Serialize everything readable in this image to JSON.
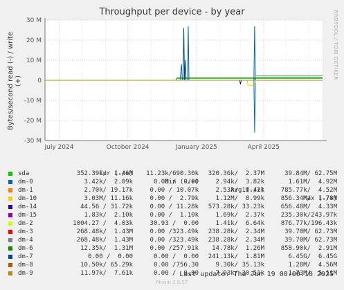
{
  "chart_data": {
    "type": "line",
    "title": "Throughput per device - by year",
    "ylabel": "Bytes/second read (-) / write (+)",
    "ylim": [
      -30000000,
      30000000
    ],
    "yticks": [
      {
        "v": 30000000,
        "label": "30 M"
      },
      {
        "v": 20000000,
        "label": "20 M"
      },
      {
        "v": 10000000,
        "label": "10 M"
      },
      {
        "v": 0,
        "label": "0"
      },
      {
        "v": -10000000,
        "label": "-10 M"
      },
      {
        "v": -20000000,
        "label": "-20 M"
      },
      {
        "v": -30000000,
        "label": "-30 M"
      }
    ],
    "xlim": [
      "2024-06-12",
      "2025-06-19"
    ],
    "xticks": [
      {
        "date": "2024-07-01",
        "label": "July 2024"
      },
      {
        "date": "2024-10-01",
        "label": "October 2024"
      },
      {
        "date": "2025-01-01",
        "label": "January 2025"
      },
      {
        "date": "2025-04-01",
        "label": "April 2025"
      }
    ],
    "series": [
      {
        "name": "sda",
        "color": "#00cc00",
        "write": [
          [
            "2024-06-12",
            0
          ],
          [
            "2024-12-05",
            0
          ],
          [
            "2024-12-06",
            1200000
          ],
          [
            "2025-03-20",
            1200000
          ],
          [
            "2025-03-21",
            1500000
          ],
          [
            "2025-06-19",
            1500000
          ]
        ],
        "read": [
          [
            "2024-06-12",
            0
          ],
          [
            "2025-06-19",
            0
          ]
        ]
      },
      {
        "name": "dm-0",
        "color": "#0066b3",
        "write": [
          [
            "2024-06-12",
            0
          ],
          [
            "2024-12-10",
            0
          ],
          [
            "2024-12-12",
            8000000
          ],
          [
            "2024-12-13",
            0
          ],
          [
            "2024-12-20",
            0
          ],
          [
            "2024-12-21",
            27000000
          ],
          [
            "2024-12-22",
            0
          ],
          [
            "2025-03-19",
            0
          ],
          [
            "2025-03-20",
            27000000
          ],
          [
            "2025-03-21",
            0
          ],
          [
            "2025-06-19",
            0
          ]
        ],
        "read": [
          [
            "2024-06-12",
            0
          ],
          [
            "2025-03-19",
            0
          ],
          [
            "2025-03-20",
            -26000000
          ],
          [
            "2025-03-21",
            0
          ],
          [
            "2025-06-19",
            0
          ]
        ]
      },
      {
        "name": "dm-1",
        "color": "#ff8000",
        "write": [
          [
            "2024-06-12",
            0
          ],
          [
            "2025-06-19",
            0
          ]
        ],
        "read": [
          [
            "2024-06-12",
            0
          ],
          [
            "2025-06-19",
            0
          ]
        ]
      },
      {
        "name": "dm-10",
        "color": "#ffcc00",
        "write": [
          [
            "2024-06-12",
            0
          ],
          [
            "2025-06-19",
            0
          ]
        ],
        "read": [
          [
            "2024-06-12",
            0
          ],
          [
            "2025-03-10",
            0
          ],
          [
            "2025-03-11",
            -2500000
          ],
          [
            "2025-03-20",
            -2500000
          ],
          [
            "2025-03-21",
            0
          ],
          [
            "2025-06-19",
            0
          ]
        ]
      },
      {
        "name": "dm-14",
        "color": "#330099",
        "write": [
          [
            "2024-06-12",
            0
          ],
          [
            "2025-06-19",
            0
          ]
        ],
        "read": [
          [
            "2024-06-12",
            0
          ],
          [
            "2025-02-28",
            0
          ],
          [
            "2025-03-01",
            -2000000
          ],
          [
            "2025-03-02",
            0
          ],
          [
            "2025-06-19",
            0
          ]
        ]
      },
      {
        "name": "dm-15",
        "color": "#990099",
        "write": [
          [
            "2024-06-12",
            0
          ],
          [
            "2025-06-19",
            0
          ]
        ],
        "read": [
          [
            "2024-06-12",
            0
          ],
          [
            "2025-06-19",
            0
          ]
        ]
      },
      {
        "name": "dm-2",
        "color": "#ccff00",
        "write": [
          [
            "2024-06-12",
            0
          ],
          [
            "2025-06-19",
            0
          ]
        ],
        "read": [
          [
            "2024-06-12",
            0
          ],
          [
            "2025-06-19",
            0
          ]
        ]
      },
      {
        "name": "dm-3",
        "color": "#ff0000",
        "write": [
          [
            "2024-06-12",
            0
          ],
          [
            "2025-06-19",
            0
          ]
        ],
        "read": [
          [
            "2024-06-12",
            0
          ],
          [
            "2025-06-19",
            0
          ]
        ]
      },
      {
        "name": "dm-4",
        "color": "#808080",
        "write": [
          [
            "2024-06-12",
            0
          ],
          [
            "2025-03-20",
            0
          ],
          [
            "2025-03-21",
            2300000
          ],
          [
            "2025-06-19",
            2300000
          ]
        ],
        "read": [
          [
            "2024-06-12",
            0
          ],
          [
            "2025-06-19",
            0
          ]
        ]
      },
      {
        "name": "dm-6",
        "color": "#008f00",
        "write": [
          [
            "2024-06-12",
            0
          ],
          [
            "2024-12-05",
            0
          ],
          [
            "2024-12-06",
            1000000
          ],
          [
            "2025-06-19",
            1000000
          ]
        ],
        "read": [
          [
            "2024-06-12",
            0
          ],
          [
            "2025-06-19",
            0
          ]
        ]
      },
      {
        "name": "dm-7",
        "color": "#00487d",
        "write": [
          [
            "2024-06-12",
            0
          ],
          [
            "2024-12-14",
            0
          ],
          [
            "2024-12-15",
            26000000
          ],
          [
            "2024-12-16",
            0
          ],
          [
            "2024-12-17",
            10000000
          ],
          [
            "2024-12-18",
            0
          ],
          [
            "2025-06-19",
            0
          ]
        ],
        "read": [
          [
            "2024-06-12",
            0
          ],
          [
            "2025-06-19",
            0
          ]
        ]
      },
      {
        "name": "dm-8",
        "color": "#b35a00",
        "write": [
          [
            "2024-06-12",
            0
          ],
          [
            "2025-06-19",
            0
          ]
        ],
        "read": [
          [
            "2024-06-12",
            0
          ],
          [
            "2025-06-19",
            0
          ]
        ]
      },
      {
        "name": "dm-9",
        "color": "#b38f00",
        "write": [
          [
            "2024-06-12",
            0
          ],
          [
            "2025-06-19",
            0
          ]
        ],
        "read": [
          [
            "2024-06-12",
            0
          ],
          [
            "2025-06-19",
            0
          ]
        ]
      }
    ]
  },
  "side_label": "RRDTOOL / TOBI OETIKER",
  "legend": {
    "headers": {
      "cur": "Cur (-/+)",
      "min": "Min (-/+)",
      "avg": "Avg (-/+)",
      "max": "Max (-/+)"
    },
    "rows": [
      {
        "name": "sda",
        "color": "#00cc00",
        "cur": "352.39k/  1.46M",
        "min": "11.23k/690.30k",
        "avg": "320.36k/  2.37M",
        "max": "39.84M/ 62.75M"
      },
      {
        "name": "dm-0",
        "color": "#0066b3",
        "cur": "3.42k/  2.09k",
        "min": "0.00 /  0.00",
        "avg": "2.94k/  3.82k",
        "max": "1.61M/  4.92M"
      },
      {
        "name": "dm-1",
        "color": "#ff8000",
        "cur": "2.70k/ 19.17k",
        "min": "0.00 / 10.07k",
        "avg": "2.53k/ 18.42k",
        "max": "785.77k/  4.52M"
      },
      {
        "name": "dm-10",
        "color": "#ffcc00",
        "cur": "3.03M/ 11.16k",
        "min": "0.00 /  2.79k",
        "avg": "1.12M/  8.99k",
        "max": "856.34M/  1.78M"
      },
      {
        "name": "dm-14",
        "color": "#330099",
        "cur": "44.56 / 31.72k",
        "min": "0.00 / 11.28k",
        "avg": "573.28k/ 33.23k",
        "max": "656.48M/  4.33M"
      },
      {
        "name": "dm-15",
        "color": "#990099",
        "cur": "1.83k/  2.10k",
        "min": "0.00 /  1.10k",
        "avg": "1.69k/  2.37k",
        "max": "235.30k/243.97k"
      },
      {
        "name": "dm-2",
        "color": "#ccff00",
        "cur": "1004.27 /  4.03k",
        "min": "30.93 /  0.00",
        "avg": "1.41k/  6.64k",
        "max": "876.77k/196.43k"
      },
      {
        "name": "dm-3",
        "color": "#ff0000",
        "cur": "268.48k/  1.43M",
        "min": "0.00 /323.49k",
        "avg": "238.28k/  2.34M",
        "max": "39.70M/ 62.73M"
      },
      {
        "name": "dm-4",
        "color": "#808080",
        "cur": "268.48k/  1.43M",
        "min": "0.00 /323.49k",
        "avg": "238.28k/  2.34M",
        "max": "39.70M/ 62.73M"
      },
      {
        "name": "dm-6",
        "color": "#008f00",
        "cur": "12.35k/  1.31M",
        "min": "0.00 /257.91k",
        "avg": "14.78k/  1.26M",
        "max": "858.90k/  2.91M"
      },
      {
        "name": "dm-7",
        "color": "#00487d",
        "cur": "0.00 /  0.00",
        "min": "0.00 /  0.00",
        "avg": "241.13k/  1.81M",
        "max": "6.45G/  6.45G"
      },
      {
        "name": "dm-8",
        "color": "#b35a00",
        "cur": "10.50k/ 65.29k",
        "min": "0.00 /756.30",
        "avg": "9.30k/ 35.13k",
        "max": "1.28M/  4.56M"
      },
      {
        "name": "dm-9",
        "color": "#b38f00",
        "cur": "11.97k/  7.61k",
        "min": "0.00 /  0.00",
        "avg": "7.93k/ 30.51k",
        "max": "1.73M/  5.11M"
      }
    ]
  },
  "last_update": "Last update: Thu Jun 19 00:00:10 2025",
  "version": "Munin 2.0.57"
}
